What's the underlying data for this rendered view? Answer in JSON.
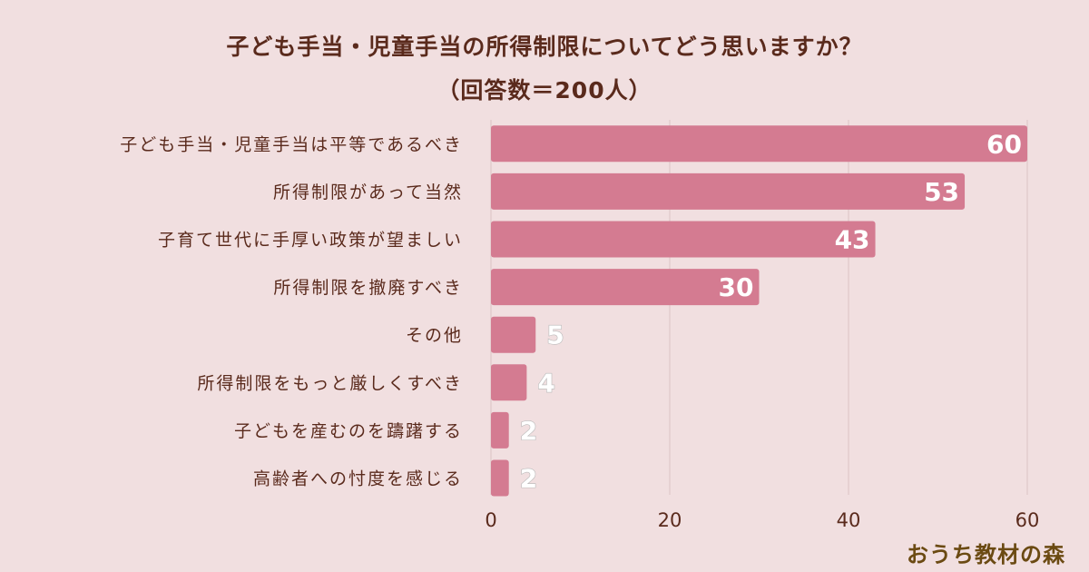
{
  "chart_data": {
    "type": "bar",
    "orientation": "horizontal",
    "title": "子ども手当・児童手当の所得制限についてどう思いますか？",
    "subtitle": "（回答数＝200人）",
    "categories": [
      "子ども手当・児童手当は平等であるべき",
      "所得制限があって当然",
      "子育て世代に手厚い政策が望ましい",
      "所得制限を撤廃すべき",
      "その他",
      "所得制限をもっと厳しくすべき",
      "子どもを産むのを躊躇する",
      "高齢者への忖度を感じる"
    ],
    "values": [
      60,
      53,
      43,
      30,
      5,
      4,
      2,
      2
    ],
    "xlim": [
      0,
      60
    ],
    "xticks": [
      "0",
      "20",
      "40",
      "60"
    ],
    "grid": true,
    "bar_color": "#d47b91"
  },
  "brand": {
    "text": "おうち教材の森"
  }
}
